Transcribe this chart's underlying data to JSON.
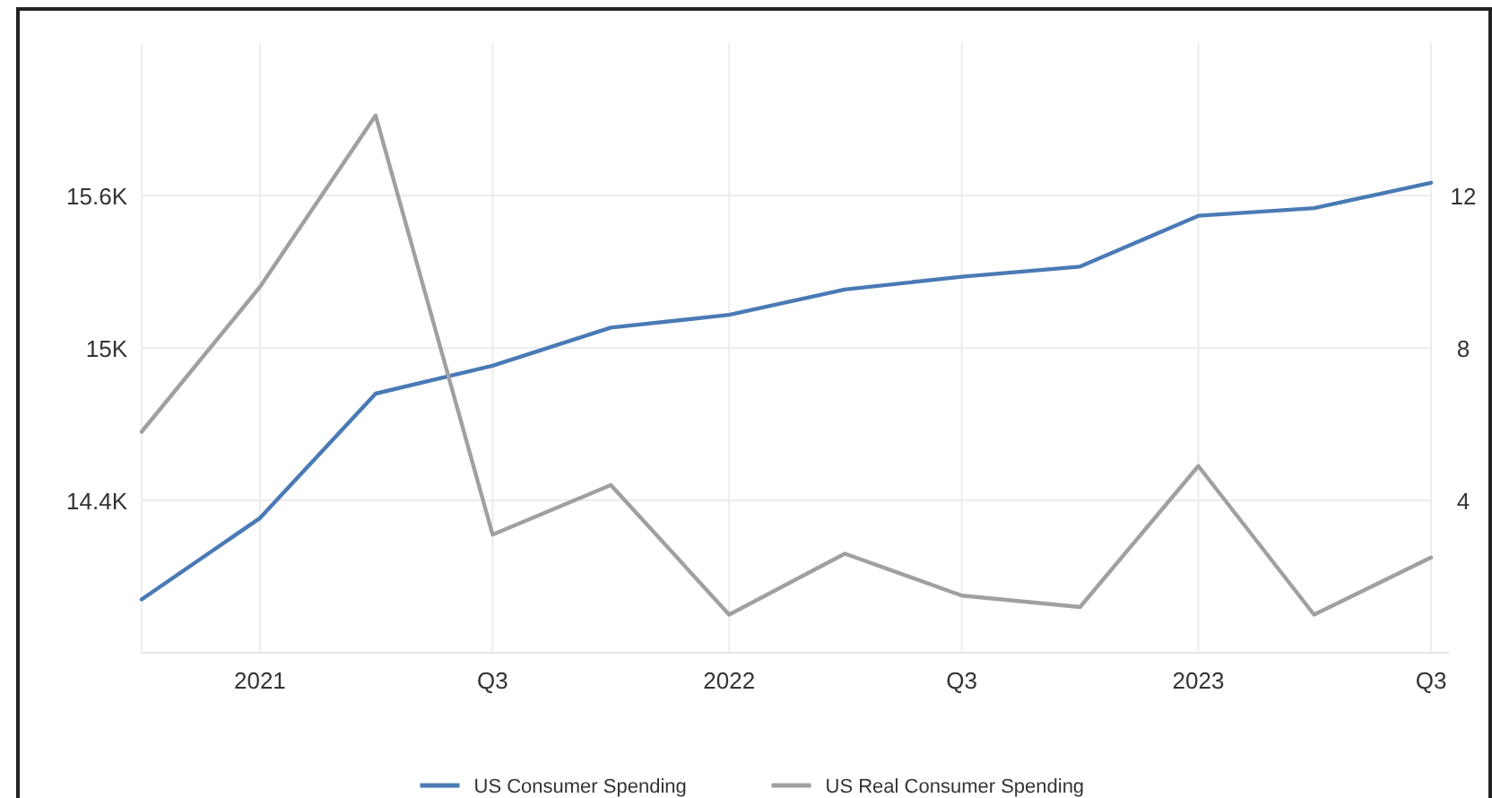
{
  "chart_data": {
    "type": "line",
    "x": [
      "2020-10",
      "2021-01",
      "2021-04",
      "2021-07",
      "2021-10",
      "2022-01",
      "2022-04",
      "2022-07",
      "2022-10",
      "2023-01",
      "2023-04",
      "2023-07"
    ],
    "series": [
      {
        "name": "US Consumer Spending",
        "color": "#4a7ab5",
        "values": [
          14010,
          14330,
          14820,
          14930,
          15080,
          15130,
          15230,
          15280,
          15320,
          15520,
          15550,
          15650
        ]
      },
      {
        "name": "US Real Consumer Spending",
        "color": "#a0a0a0",
        "axis": "y2",
        "values": [
          5.8,
          9.6,
          14.1,
          3.1,
          4.4,
          1.0,
          2.6,
          1.5,
          1.2,
          4.9,
          1.0,
          2.5
        ]
      }
    ],
    "xlim": [
      "2020-10",
      "2023-07"
    ],
    "xticks": [
      {
        "value": "2021-01",
        "label": "2021"
      },
      {
        "value": "2021-07",
        "label": "Q3"
      },
      {
        "value": "2022-01",
        "label": "2022"
      },
      {
        "value": "2022-07",
        "label": "Q3"
      },
      {
        "value": "2023-01",
        "label": "2023"
      },
      {
        "value": "2023-07",
        "label": "Q3"
      }
    ],
    "ylim": [
      13800,
      16200
    ],
    "yticks": [
      {
        "value": 14400,
        "label": "14.4K"
      },
      {
        "value": 15000,
        "label": "15K"
      },
      {
        "value": 15600,
        "label": "15.6K"
      }
    ],
    "y2lim": [
      0,
      16
    ],
    "y2ticks": [
      4,
      8,
      12
    ],
    "grid": true,
    "legend": "bottom",
    "marker": "none",
    "line_style": "solid"
  }
}
